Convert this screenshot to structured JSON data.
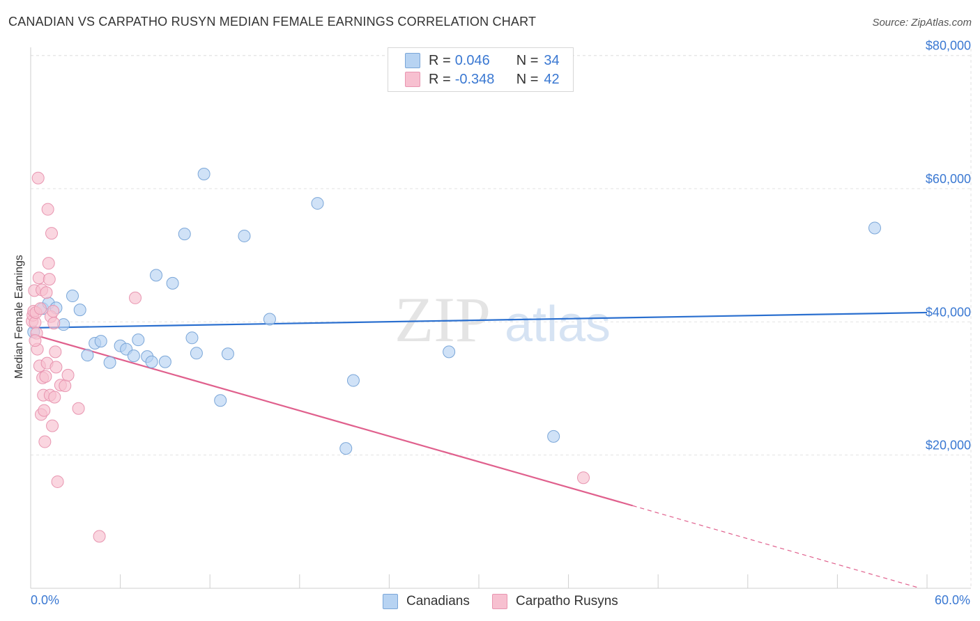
{
  "title": "CANADIAN VS CARPATHO RUSYN MEDIAN FEMALE EARNINGS CORRELATION CHART",
  "source": "Source: ZipAtlas.com",
  "watermark": {
    "zip": "ZIP",
    "atlas": "atlas"
  },
  "legend": {
    "items": [
      {
        "r_label": "R =",
        "r_value": "0.046",
        "n_label": "N =",
        "n_value": "34",
        "color": "#b7d3f2"
      },
      {
        "r_label": "R =",
        "r_value": "-0.348",
        "n_label": "N =",
        "n_value": "42",
        "color": "#f7c0d0"
      }
    ]
  },
  "bottom_legend": [
    {
      "label": "Canadians",
      "color": "#b7d3f2"
    },
    {
      "label": "Carpatho Rusyns",
      "color": "#f7c0d0"
    }
  ],
  "chart_data": {
    "type": "scatter",
    "title": "CANADIAN VS CARPATHO RUSYN MEDIAN FEMALE EARNINGS CORRELATION CHART",
    "xlabel": "",
    "ylabel": "Median Female Earnings",
    "xlim": [
      0,
      60
    ],
    "ylim": [
      0,
      80000
    ],
    "x_tick_labels": [
      "0.0%",
      "60.0%"
    ],
    "y_ticks": [
      20000,
      40000,
      60000,
      80000
    ],
    "y_tick_labels": [
      "$20,000",
      "$40,000",
      "$60,000",
      "$80,000"
    ],
    "grid": true,
    "series": [
      {
        "name": "Canadians",
        "color": "#b7d3f2",
        "stroke": "#7aa6d8",
        "line_color": "#2a6fcf",
        "trend": {
          "x": [
            0,
            60
          ],
          "y": [
            39100,
            41400
          ]
        },
        "points": [
          [
            0.2,
            38500
          ],
          [
            0.8,
            42000
          ],
          [
            1.2,
            42800
          ],
          [
            1.7,
            42100
          ],
          [
            2.2,
            39600
          ],
          [
            2.8,
            43900
          ],
          [
            3.3,
            41800
          ],
          [
            3.8,
            35000
          ],
          [
            4.3,
            36800
          ],
          [
            4.7,
            37100
          ],
          [
            5.3,
            33900
          ],
          [
            6.0,
            36400
          ],
          [
            6.4,
            35900
          ],
          [
            6.9,
            34900
          ],
          [
            7.2,
            37300
          ],
          [
            7.8,
            34800
          ],
          [
            8.1,
            34000
          ],
          [
            8.4,
            47000
          ],
          [
            9.0,
            34000
          ],
          [
            9.5,
            45800
          ],
          [
            10.3,
            53200
          ],
          [
            10.8,
            37600
          ],
          [
            11.1,
            35300
          ],
          [
            11.6,
            62200
          ],
          [
            12.7,
            28200
          ],
          [
            13.2,
            35200
          ],
          [
            14.3,
            52900
          ],
          [
            16.0,
            40400
          ],
          [
            19.2,
            57800
          ],
          [
            21.1,
            21000
          ],
          [
            21.6,
            31200
          ],
          [
            28.0,
            35500
          ],
          [
            35.0,
            22800
          ],
          [
            56.5,
            54100
          ]
        ]
      },
      {
        "name": "Carpatho Rusyns",
        "color": "#f7c0d0",
        "stroke": "#e895b0",
        "line_color": "#e0608d",
        "trend": {
          "x": [
            0,
            40.3
          ],
          "y": [
            38200,
            12400
          ]
        },
        "trend_dashed": {
          "x": [
            40.3,
            59.4
          ],
          "y": [
            12400,
            100
          ]
        },
        "points": [
          [
            0.1,
            40100
          ],
          [
            0.15,
            41000
          ],
          [
            0.2,
            41600
          ],
          [
            0.25,
            44700
          ],
          [
            0.3,
            39900
          ],
          [
            0.35,
            41400
          ],
          [
            0.4,
            38300
          ],
          [
            0.45,
            35900
          ],
          [
            0.5,
            61600
          ],
          [
            0.55,
            46600
          ],
          [
            0.6,
            33400
          ],
          [
            0.65,
            42000
          ],
          [
            0.7,
            26100
          ],
          [
            0.75,
            44800
          ],
          [
            0.8,
            31600
          ],
          [
            0.85,
            29000
          ],
          [
            0.9,
            26700
          ],
          [
            0.95,
            22000
          ],
          [
            1.0,
            31800
          ],
          [
            1.05,
            44400
          ],
          [
            1.1,
            33800
          ],
          [
            1.15,
            56900
          ],
          [
            1.2,
            48800
          ],
          [
            1.25,
            46400
          ],
          [
            1.3,
            29000
          ],
          [
            1.35,
            40800
          ],
          [
            1.4,
            53300
          ],
          [
            1.45,
            24400
          ],
          [
            1.5,
            41600
          ],
          [
            1.55,
            39800
          ],
          [
            1.6,
            28700
          ],
          [
            1.65,
            35500
          ],
          [
            1.7,
            33200
          ],
          [
            1.8,
            16000
          ],
          [
            2.0,
            30500
          ],
          [
            2.3,
            30400
          ],
          [
            2.5,
            32000
          ],
          [
            3.2,
            27000
          ],
          [
            4.6,
            7800
          ],
          [
            7.0,
            43600
          ],
          [
            37.0,
            16600
          ],
          [
            0.3,
            37200
          ]
        ]
      }
    ]
  }
}
